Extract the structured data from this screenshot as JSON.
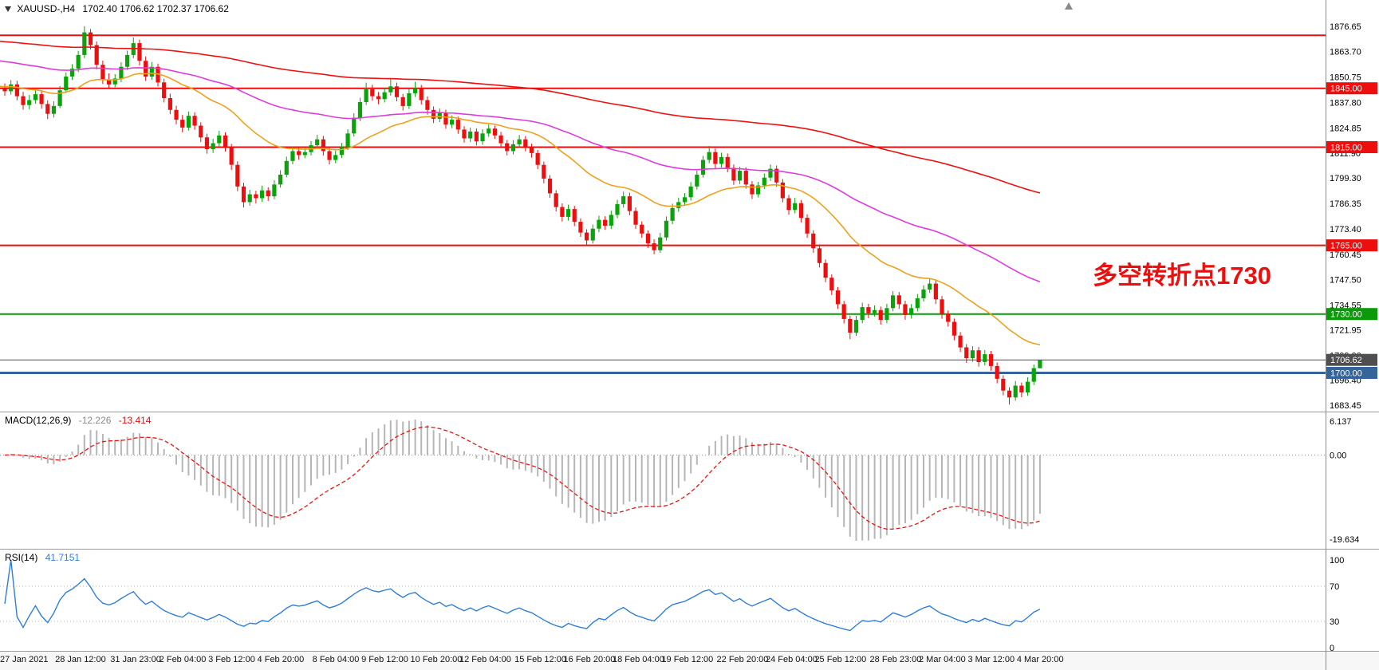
{
  "window": {
    "title_symbol": "XAUUSD-,H4",
    "title_ohlc": "1702.40 1706.62 1702.37 1706.62"
  },
  "annotation": {
    "text": "多空转折点1730",
    "color": "#ee0e0e"
  },
  "indicators": {
    "macd": {
      "label": "MACD(12,26,9)",
      "value_main": "-12.226",
      "value_signal": "-13.414",
      "axis_labels": [
        "6.137",
        "0.00",
        "-19.634"
      ]
    },
    "rsi": {
      "label": "RSI(14)",
      "value": "41.7151",
      "axis_labels": [
        "100",
        "70",
        "30",
        "0"
      ],
      "levels": [
        70,
        30
      ]
    }
  },
  "chart_data": {
    "type": "candlestick",
    "title": "XAUUSD-,H4",
    "symbol": "XAUUSD-",
    "timeframe": "H4",
    "ylim": [
      1680.3,
      1890.0
    ],
    "colors": {
      "up": "#0aa30a",
      "down": "#ee0e0e",
      "macd_hist": "#b6b6b6",
      "macd_signal": "#ee1111",
      "rsi": "#2f7ed8",
      "current": "#4f4f4f"
    },
    "y_axis_labels": [
      1876.65,
      1863.7,
      1850.75,
      1837.8,
      1824.85,
      1811.9,
      1799.3,
      1786.35,
      1773.4,
      1760.45,
      1747.5,
      1734.55,
      1721.95,
      1709.0,
      1696.4,
      1683.45
    ],
    "hlines": [
      {
        "price": 1872.0,
        "color": "#ee0e0e",
        "width": 2
      },
      {
        "price": 1845.0,
        "color": "#ee0e0e",
        "width": 2,
        "tag": "1845.00"
      },
      {
        "price": 1815.0,
        "color": "#ee0e0e",
        "width": 2,
        "tag": "1815.00"
      },
      {
        "price": 1765.0,
        "color": "#ee0e0e",
        "width": 2,
        "tag": "1765.00"
      },
      {
        "price": 1730.0,
        "color": "#0a9a0a",
        "width": 2,
        "tag": "1730.00"
      },
      {
        "price": 1700.0,
        "color": "#35639b",
        "width": 3,
        "tag": "1700.00"
      }
    ],
    "current_price": {
      "price": 1706.62,
      "tag": "1706.62"
    },
    "moving_averages": [
      {
        "name": "ma-fast-line",
        "period": 26,
        "seed": 1846,
        "color": "#eea11e"
      },
      {
        "name": "ma-mid-line",
        "period": 72,
        "seed": 1859,
        "color": "#dd3ddd"
      },
      {
        "name": "ma-slow-line",
        "period": 200,
        "seed": 1869,
        "color": "#ee1111"
      }
    ],
    "x_labels": [
      [
        0,
        "27 Jan 2021"
      ],
      [
        9,
        "28 Jan 12:00"
      ],
      [
        18,
        "31 Jan 23:00"
      ],
      [
        26,
        "2 Feb 04:00"
      ],
      [
        34,
        "3 Feb 12:00"
      ],
      [
        42,
        "4 Feb 20:00"
      ],
      [
        51,
        "8 Feb 04:00"
      ],
      [
        59,
        "9 Feb 12:00"
      ],
      [
        67,
        "10 Feb 20:00"
      ],
      [
        75,
        "12 Feb 04:00"
      ],
      [
        84,
        "15 Feb 12:00"
      ],
      [
        92,
        "16 Feb 20:00"
      ],
      [
        100,
        "18 Feb 04:00"
      ],
      [
        108,
        "19 Feb 12:00"
      ],
      [
        117,
        "22 Feb 20:00"
      ],
      [
        125,
        "24 Feb 04:00"
      ],
      [
        133,
        "25 Feb 12:00"
      ],
      [
        142,
        "28 Feb 23:00"
      ],
      [
        150,
        "2 Mar 04:00"
      ],
      [
        158,
        "3 Mar 12:00"
      ],
      [
        166,
        "4 Mar 20:00"
      ]
    ],
    "candles": [
      [
        1845.0,
        1847.5,
        1841.2,
        1843.5
      ],
      [
        1843.5,
        1849.2,
        1841.8,
        1847.0
      ],
      [
        1847.0,
        1848.8,
        1838.9,
        1841.0
      ],
      [
        1841.0,
        1843.2,
        1834.1,
        1836.5
      ],
      [
        1836.5,
        1841.6,
        1834.3,
        1839.0
      ],
      [
        1839.0,
        1844.4,
        1837.2,
        1842.0
      ],
      [
        1842.0,
        1843.8,
        1834.6,
        1837.0
      ],
      [
        1837.0,
        1838.9,
        1829.3,
        1832.0
      ],
      [
        1832.0,
        1838.4,
        1830.1,
        1836.0
      ],
      [
        1836.0,
        1846.2,
        1834.9,
        1844.0
      ],
      [
        1844.0,
        1853.1,
        1842.6,
        1851.0
      ],
      [
        1851.0,
        1857.3,
        1849.2,
        1855.0
      ],
      [
        1855.0,
        1864.1,
        1853.3,
        1862.0
      ],
      [
        1862.0,
        1876.65,
        1860.4,
        1873.5
      ],
      [
        1873.5,
        1875.2,
        1864.8,
        1867.0
      ],
      [
        1867.0,
        1868.9,
        1854.7,
        1857.0
      ],
      [
        1857.0,
        1859.1,
        1847.2,
        1849.5
      ],
      [
        1849.5,
        1852.6,
        1844.9,
        1847.0
      ],
      [
        1847.0,
        1852.2,
        1845.6,
        1850.0
      ],
      [
        1850.0,
        1858.3,
        1848.1,
        1856.0
      ],
      [
        1856.0,
        1864.2,
        1854.4,
        1862.0
      ],
      [
        1862.0,
        1870.9,
        1860.3,
        1868.0
      ],
      [
        1868.0,
        1869.8,
        1856.6,
        1859.0
      ],
      [
        1859.0,
        1861.2,
        1848.8,
        1851.0
      ],
      [
        1851.0,
        1858.4,
        1849.3,
        1856.0
      ],
      [
        1856.0,
        1857.6,
        1845.9,
        1848.0
      ],
      [
        1848.0,
        1849.9,
        1837.8,
        1840.0
      ],
      [
        1840.0,
        1842.3,
        1831.8,
        1834.0
      ],
      [
        1834.0,
        1836.1,
        1826.7,
        1829.0
      ],
      [
        1829.0,
        1831.4,
        1822.6,
        1825.0
      ],
      [
        1825.0,
        1833.2,
        1823.5,
        1831.0
      ],
      [
        1831.0,
        1832.8,
        1823.9,
        1826.0
      ],
      [
        1826.0,
        1827.7,
        1817.6,
        1820.0
      ],
      [
        1820.0,
        1821.9,
        1811.7,
        1814.0
      ],
      [
        1814.0,
        1819.3,
        1812.1,
        1817.0
      ],
      [
        1817.0,
        1823.4,
        1815.3,
        1821.0
      ],
      [
        1821.0,
        1822.6,
        1812.8,
        1815.0
      ],
      [
        1815.0,
        1816.7,
        1803.4,
        1806.0
      ],
      [
        1806.0,
        1807.8,
        1792.6,
        1795.0
      ],
      [
        1795.0,
        1796.9,
        1784.3,
        1787.0
      ],
      [
        1787.0,
        1793.3,
        1785.2,
        1791.0
      ],
      [
        1791.0,
        1792.8,
        1786.4,
        1789.0
      ],
      [
        1789.0,
        1795.4,
        1787.1,
        1793.0
      ],
      [
        1793.0,
        1794.6,
        1787.7,
        1790.0
      ],
      [
        1790.0,
        1798.2,
        1788.5,
        1796.0
      ],
      [
        1796.0,
        1803.3,
        1794.4,
        1801.0
      ],
      [
        1801.0,
        1810.2,
        1799.6,
        1808.0
      ],
      [
        1808.0,
        1815.4,
        1806.3,
        1813.0
      ],
      [
        1813.0,
        1815.0,
        1808.6,
        1811.0
      ],
      [
        1811.0,
        1814.7,
        1809.4,
        1812.5
      ],
      [
        1812.5,
        1818.1,
        1810.8,
        1816.0
      ],
      [
        1816.0,
        1821.3,
        1814.2,
        1819.0
      ],
      [
        1819.0,
        1820.8,
        1810.7,
        1813.0
      ],
      [
        1813.0,
        1814.9,
        1806.2,
        1808.5
      ],
      [
        1808.5,
        1813.3,
        1806.8,
        1811.0
      ],
      [
        1811.0,
        1817.2,
        1809.5,
        1815.0
      ],
      [
        1815.0,
        1824.1,
        1813.6,
        1822.0
      ],
      [
        1822.0,
        1832.3,
        1820.4,
        1830.0
      ],
      [
        1830.0,
        1840.2,
        1828.3,
        1838.0
      ],
      [
        1838.0,
        1847.9,
        1836.5,
        1844.5
      ],
      [
        1844.5,
        1846.8,
        1838.7,
        1841.0
      ],
      [
        1841.0,
        1843.1,
        1836.9,
        1839.5
      ],
      [
        1839.5,
        1845.3,
        1837.8,
        1843.0
      ],
      [
        1843.0,
        1849.8,
        1841.3,
        1846.0
      ],
      [
        1846.0,
        1847.9,
        1838.4,
        1840.5
      ],
      [
        1840.5,
        1842.2,
        1833.7,
        1836.0
      ],
      [
        1836.0,
        1844.6,
        1834.5,
        1842.5
      ],
      [
        1842.5,
        1848.3,
        1840.6,
        1845.0
      ],
      [
        1845.0,
        1846.7,
        1836.8,
        1839.0
      ],
      [
        1839.0,
        1840.9,
        1831.6,
        1834.0
      ],
      [
        1834.0,
        1835.8,
        1827.3,
        1829.5
      ],
      [
        1829.5,
        1834.7,
        1827.8,
        1832.5
      ],
      [
        1832.5,
        1834.1,
        1824.4,
        1826.5
      ],
      [
        1826.5,
        1831.2,
        1824.7,
        1829.0
      ],
      [
        1829.0,
        1830.6,
        1821.8,
        1824.0
      ],
      [
        1824.0,
        1825.7,
        1817.3,
        1819.5
      ],
      [
        1819.5,
        1825.0,
        1817.6,
        1823.0
      ],
      [
        1823.0,
        1824.6,
        1815.9,
        1818.0
      ],
      [
        1818.0,
        1824.1,
        1816.2,
        1822.0
      ],
      [
        1822.0,
        1826.6,
        1820.3,
        1824.5
      ],
      [
        1824.5,
        1826.0,
        1819.2,
        1821.0
      ],
      [
        1821.0,
        1822.8,
        1814.9,
        1817.0
      ],
      [
        1817.0,
        1818.7,
        1810.8,
        1813.0
      ],
      [
        1813.0,
        1818.6,
        1811.3,
        1816.5
      ],
      [
        1816.5,
        1821.2,
        1814.7,
        1819.0
      ],
      [
        1819.0,
        1820.7,
        1812.9,
        1815.0
      ],
      [
        1815.0,
        1816.8,
        1809.7,
        1812.0
      ],
      [
        1812.0,
        1813.6,
        1803.8,
        1806.0
      ],
      [
        1806.0,
        1807.7,
        1796.6,
        1799.0
      ],
      [
        1799.0,
        1800.8,
        1789.2,
        1791.5
      ],
      [
        1791.5,
        1793.1,
        1782.3,
        1784.5
      ],
      [
        1784.5,
        1786.4,
        1777.1,
        1779.5
      ],
      [
        1779.5,
        1785.7,
        1777.6,
        1783.5
      ],
      [
        1783.5,
        1785.1,
        1774.8,
        1777.0
      ],
      [
        1777.0,
        1778.8,
        1769.3,
        1771.5
      ],
      [
        1771.5,
        1773.2,
        1765.2,
        1767.5
      ],
      [
        1767.5,
        1775.6,
        1765.9,
        1773.5
      ],
      [
        1773.5,
        1780.1,
        1771.7,
        1778.0
      ],
      [
        1778.0,
        1779.8,
        1772.9,
        1775.0
      ],
      [
        1775.0,
        1782.7,
        1773.3,
        1780.5
      ],
      [
        1780.5,
        1788.2,
        1778.8,
        1786.0
      ],
      [
        1786.0,
        1792.4,
        1784.2,
        1790.0
      ],
      [
        1790.0,
        1791.8,
        1780.3,
        1782.5
      ],
      [
        1782.5,
        1784.3,
        1773.4,
        1775.5
      ],
      [
        1775.5,
        1777.2,
        1768.8,
        1771.0
      ],
      [
        1771.0,
        1772.6,
        1763.7,
        1766.0
      ],
      [
        1766.0,
        1768.1,
        1760.5,
        1762.5
      ],
      [
        1762.5,
        1771.3,
        1761.2,
        1769.0
      ],
      [
        1769.0,
        1779.7,
        1767.4,
        1777.5
      ],
      [
        1777.5,
        1786.2,
        1775.8,
        1784.0
      ],
      [
        1784.0,
        1789.3,
        1782.1,
        1787.0
      ],
      [
        1787.0,
        1791.6,
        1785.2,
        1789.5
      ],
      [
        1789.5,
        1797.2,
        1787.8,
        1795.0
      ],
      [
        1795.0,
        1803.1,
        1793.4,
        1801.0
      ],
      [
        1801.0,
        1810.6,
        1799.5,
        1808.5
      ],
      [
        1808.5,
        1815.6,
        1806.8,
        1812.5
      ],
      [
        1812.5,
        1814.3,
        1804.2,
        1806.5
      ],
      [
        1806.5,
        1812.2,
        1804.7,
        1810.0
      ],
      [
        1810.0,
        1811.8,
        1802.3,
        1804.5
      ],
      [
        1804.5,
        1806.2,
        1795.8,
        1798.0
      ],
      [
        1798.0,
        1805.1,
        1796.2,
        1803.0
      ],
      [
        1803.0,
        1804.8,
        1793.9,
        1796.0
      ],
      [
        1796.0,
        1797.7,
        1788.6,
        1791.0
      ],
      [
        1791.0,
        1797.3,
        1789.4,
        1795.5
      ],
      [
        1795.5,
        1801.6,
        1793.7,
        1799.5
      ],
      [
        1799.5,
        1806.2,
        1797.8,
        1804.0
      ],
      [
        1804.0,
        1805.7,
        1794.8,
        1797.0
      ],
      [
        1797.0,
        1798.8,
        1786.9,
        1789.0
      ],
      [
        1789.0,
        1790.7,
        1780.6,
        1783.0
      ],
      [
        1783.0,
        1789.2,
        1781.3,
        1786.5
      ],
      [
        1786.5,
        1788.1,
        1776.7,
        1779.0
      ],
      [
        1779.0,
        1780.8,
        1768.8,
        1771.0
      ],
      [
        1771.0,
        1772.7,
        1761.2,
        1763.5
      ],
      [
        1763.5,
        1765.3,
        1753.7,
        1756.0
      ],
      [
        1756.0,
        1757.8,
        1746.2,
        1748.5
      ],
      [
        1748.5,
        1750.2,
        1739.7,
        1742.0
      ],
      [
        1742.0,
        1743.8,
        1732.6,
        1735.0
      ],
      [
        1735.0,
        1736.7,
        1725.2,
        1727.5
      ],
      [
        1727.5,
        1729.2,
        1717.2,
        1720.5
      ],
      [
        1720.5,
        1729.1,
        1718.9,
        1727.0
      ],
      [
        1727.0,
        1735.8,
        1725.3,
        1733.5
      ],
      [
        1733.5,
        1735.2,
        1727.9,
        1730.5
      ],
      [
        1730.5,
        1734.4,
        1728.7,
        1732.0
      ],
      [
        1732.0,
        1733.8,
        1724.6,
        1727.0
      ],
      [
        1727.0,
        1735.2,
        1725.3,
        1733.0
      ],
      [
        1733.0,
        1741.7,
        1731.4,
        1739.5
      ],
      [
        1739.5,
        1741.2,
        1732.6,
        1735.0
      ],
      [
        1735.0,
        1736.8,
        1727.1,
        1729.5
      ],
      [
        1729.5,
        1735.1,
        1727.7,
        1733.0
      ],
      [
        1733.0,
        1740.2,
        1731.3,
        1738.0
      ],
      [
        1738.0,
        1744.6,
        1736.4,
        1742.5
      ],
      [
        1742.5,
        1747.8,
        1740.7,
        1745.5
      ],
      [
        1745.5,
        1747.1,
        1735.1,
        1737.5
      ],
      [
        1737.5,
        1739.2,
        1727.6,
        1730.0
      ],
      [
        1730.0,
        1731.8,
        1723.6,
        1726.0
      ],
      [
        1726.0,
        1727.7,
        1716.6,
        1719.0
      ],
      [
        1719.0,
        1720.8,
        1710.7,
        1713.0
      ],
      [
        1713.0,
        1714.7,
        1705.1,
        1707.5
      ],
      [
        1707.5,
        1713.6,
        1705.7,
        1711.5
      ],
      [
        1711.5,
        1713.2,
        1703.2,
        1705.5
      ],
      [
        1705.5,
        1711.6,
        1703.8,
        1709.5
      ],
      [
        1709.5,
        1711.2,
        1701.1,
        1703.5
      ],
      [
        1703.5,
        1705.3,
        1694.7,
        1697.0
      ],
      [
        1697.0,
        1698.8,
        1688.6,
        1691.0
      ],
      [
        1691.0,
        1692.7,
        1683.9,
        1687.5
      ],
      [
        1687.5,
        1695.9,
        1685.8,
        1693.5
      ],
      [
        1693.5,
        1695.1,
        1687.6,
        1690.0
      ],
      [
        1690.0,
        1697.8,
        1688.3,
        1695.5
      ],
      [
        1695.5,
        1704.3,
        1693.8,
        1702.4
      ],
      [
        1702.4,
        1706.62,
        1702.37,
        1706.62
      ]
    ]
  }
}
